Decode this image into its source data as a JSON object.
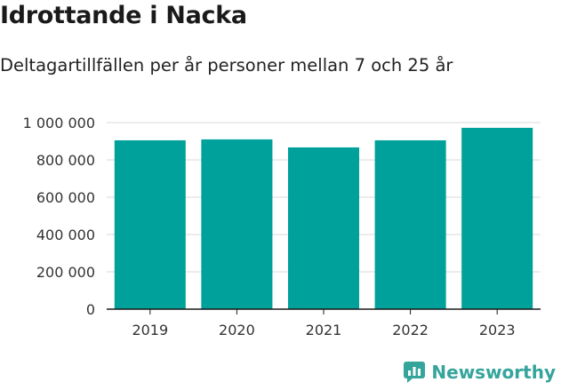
{
  "header": {
    "title": "Idrottande i Nacka",
    "subtitle": "Deltagartillfällen per år personer mellan 7 och 25 år"
  },
  "brand": {
    "name": "Newsworthy",
    "icon": "newsworthy-logo-icon",
    "color": "#35a59c"
  },
  "chart_data": {
    "type": "bar",
    "title": "Idrottande i Nacka",
    "subtitle": "Deltagartillfällen per år personer mellan 7 och 25 år",
    "categories": [
      "2019",
      "2020",
      "2021",
      "2022",
      "2023"
    ],
    "values": [
      905000,
      910000,
      867000,
      905000,
      972000
    ],
    "ylim": [
      0,
      1000000
    ],
    "yticks": [
      0,
      200000,
      400000,
      600000,
      800000,
      1000000
    ],
    "ytick_labels": [
      "0",
      "200 000",
      "400 000",
      "600 000",
      "800 000",
      "1 000 000"
    ],
    "xlabel": "",
    "ylabel": "",
    "grid": true,
    "legend": "none",
    "bar_color": "#00a19a"
  }
}
